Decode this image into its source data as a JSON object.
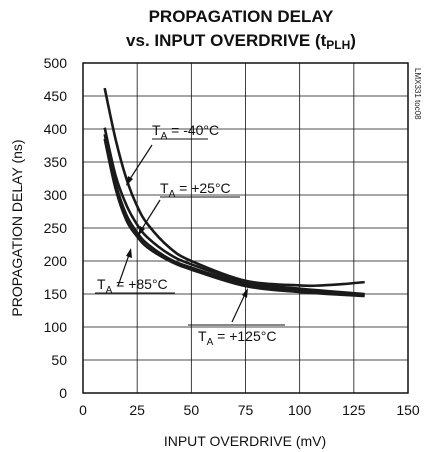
{
  "chart_data": {
    "type": "line",
    "title_line1": "PROPAGATION DELAY",
    "title_line2_prefix": "vs. INPUT OVERDRIVE (t",
    "title_line2_sub": "PLH",
    "title_line2_suffix": ")",
    "xlabel": "INPUT OVERDRIVE (mV)",
    "ylabel": "PROPAGATION DELAY (ns)",
    "xlim": [
      0,
      150
    ],
    "ylim": [
      0,
      500
    ],
    "xticks": [
      0,
      25,
      50,
      75,
      100,
      125,
      150
    ],
    "yticks": [
      0,
      50,
      100,
      150,
      200,
      250,
      300,
      350,
      400,
      450,
      500
    ],
    "grid": true,
    "side_code": "LMX331 toc08",
    "series": [
      {
        "name": "T_A = -40°C",
        "label_prefix": "T",
        "label_sub": "A",
        "label_suffix": " = -40°C",
        "x": [
          10,
          15,
          20,
          25,
          30,
          40,
          50,
          75,
          100,
          110,
          120,
          130
        ],
        "values": [
          462,
          385,
          325,
          283,
          255,
          220,
          200,
          170,
          163,
          163,
          165,
          168
        ]
      },
      {
        "name": "T_A = +25°C",
        "label_prefix": "T",
        "label_sub": "A",
        "label_suffix": " = +25°C",
        "x": [
          10,
          15,
          20,
          25,
          30,
          40,
          50,
          75,
          100,
          130
        ],
        "values": [
          402,
          330,
          285,
          255,
          235,
          210,
          195,
          168,
          158,
          150
        ]
      },
      {
        "name": "T_A = +85°C",
        "label_prefix": "T",
        "label_sub": "A",
        "label_suffix": " = +85°C",
        "x": [
          10,
          15,
          20,
          25,
          30,
          40,
          50,
          75,
          100,
          130
        ],
        "values": [
          392,
          318,
          270,
          243,
          225,
          203,
          190,
          165,
          155,
          148
        ]
      },
      {
        "name": "T_A = +125°C",
        "label_prefix": "T",
        "label_sub": "A",
        "label_suffix": " = +125°C",
        "x": [
          10,
          15,
          20,
          25,
          30,
          40,
          50,
          75,
          100,
          130
        ],
        "values": [
          385,
          310,
          262,
          237,
          220,
          200,
          187,
          162,
          153,
          147
        ]
      }
    ]
  }
}
